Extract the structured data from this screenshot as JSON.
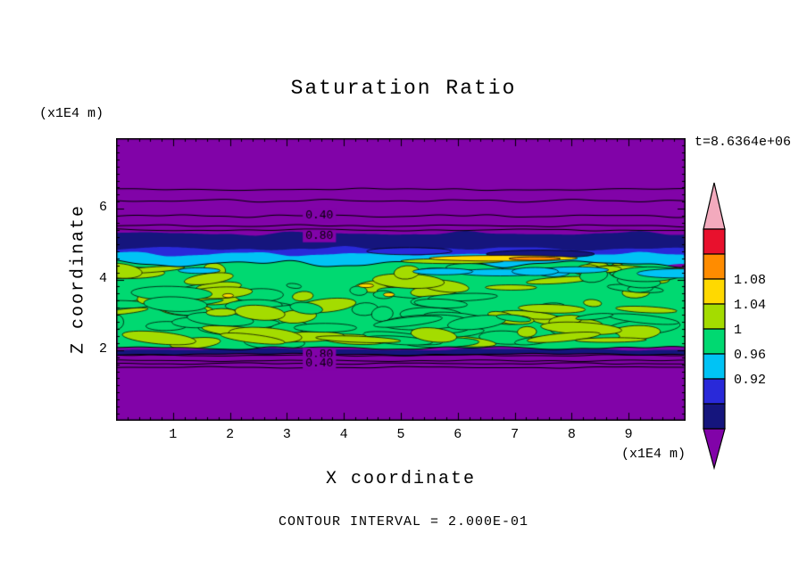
{
  "title": "Saturation Ratio",
  "annotations": {
    "time": "t=8.6364e+06",
    "contour_interval": "CONTOUR INTERVAL = 2.000E-01",
    "x_units": "(x1E4 m)",
    "z_units": "(x1E4 m)"
  },
  "axes": {
    "x": {
      "label": "X coordinate"
    },
    "z": {
      "label": "Z coordinate"
    }
  },
  "colorbar": {
    "labels": [
      "1.08",
      "1.04",
      "1",
      "0.96",
      "0.92"
    ],
    "labeled_boundary_indices": [
      2,
      3,
      4,
      5,
      6
    ],
    "colors_top_to_bottom": [
      "#f3aabd",
      "#e8112d",
      "#ff8c00",
      "#ffd900",
      "#a4dc00",
      "#00d971",
      "#00c3f5",
      "#2929d9",
      "#15157d",
      "#8103a8"
    ]
  },
  "contour_line_labels": {
    "upper": [
      "0.40",
      "0.80"
    ],
    "lower": [
      "0.80",
      "0.40"
    ]
  },
  "chart_data": {
    "type": "contour",
    "title": "Saturation Ratio",
    "xlabel": "X coordinate",
    "ylabel": "Z coordinate",
    "x_units": "(x1E4 m)",
    "z_units": "(x1E4 m)",
    "xlim": [
      0,
      10
    ],
    "ylim": [
      0,
      8
    ],
    "x_ticks": [
      1,
      2,
      3,
      4,
      5,
      6,
      7,
      8,
      9
    ],
    "y_ticks": [
      2,
      4,
      6
    ],
    "time": "t=8.6364e+06",
    "contour_interval": 0.2,
    "color_levels": [
      0.84,
      0.88,
      0.92,
      0.96,
      1.0,
      1.04,
      1.08,
      1.12,
      1.16
    ],
    "colorbar_tick_labels": [
      "1.08",
      "1.04",
      "1",
      "0.96",
      "0.92"
    ],
    "color_scale": [
      {
        "color": "pink",
        "range": "> 1.16"
      },
      {
        "color": "red",
        "range": "1.12 - 1.16"
      },
      {
        "color": "orange",
        "range": "1.08 - 1.12"
      },
      {
        "color": "yellow",
        "range": "1.04 - 1.08"
      },
      {
        "color": "chartreuse",
        "range": "1.00 - 1.04"
      },
      {
        "color": "green",
        "range": "0.96 - 1.00"
      },
      {
        "color": "cyan",
        "range": "0.92 - 0.96"
      },
      {
        "color": "blue",
        "range": "0.88 - 0.92"
      },
      {
        "color": "navy",
        "range": "0.84 - 0.88"
      },
      {
        "color": "purple",
        "range": "< 0.84"
      }
    ],
    "palette": {
      "pink": "#f3aabd",
      "red": "#e8112d",
      "orange": "#ff8c00",
      "yellow": "#ffd900",
      "chartreuse": "#a4dc00",
      "green": "#00d971",
      "cyan": "#00c3f5",
      "blue": "#2929d9",
      "navy": "#15157d",
      "purple": "#8103a8"
    },
    "field": {
      "description": "Horizontally stratified saturation-ratio field: strongly subsaturated purple zones (S<0.84) above z~5.3 and below z~1.9 with line contours 0.40/0.80 at interval 0.2; a dark blue band (S~0.84-0.92) near z~4.7-5.3; a turbulent near-saturated band (S~0.96-1.04, green with yellow-green eddies) between z~2.1 and z~4.5; thin supersaturated streak (S~1.04-1.12, yellow/orange) near z~4.6 around x~5.5-8.",
      "background_color": "purple",
      "upper_layers": [
        {
          "id": "navy1",
          "color": "navy",
          "z_top": 5.3,
          "z_bot": 4.64,
          "amp": 3,
          "seed": 11
        },
        {
          "id": "blue1",
          "color": "blue",
          "z_top": 4.87,
          "z_bot": 4.58,
          "amp": 3,
          "seed": 21
        },
        {
          "id": "cyan1",
          "color": "cyan",
          "z_top": 4.72,
          "z_bot": 4.34,
          "amp": 3.5,
          "seed": 31
        }
      ],
      "green_layer": {
        "id": "green",
        "color": "green",
        "z_top": 4.45,
        "z_bot": 2.06,
        "amp": 5,
        "amp_bottom": 2.5,
        "seed": 41,
        "blob_seed": 7,
        "blob_count": 120
      },
      "bottom_strip": {
        "id": "navy2",
        "color": "navy",
        "z_top": 2.02,
        "z_bot": 1.88,
        "amp": 1.5,
        "seed": 51
      },
      "streaks_under": [
        {
          "color": "blue",
          "x": 5.15,
          "z": 4.8,
          "rx": 0.75,
          "rz": 0.1
        },
        {
          "color": "navy",
          "x": 7.45,
          "z": 4.72,
          "rx": 0.95,
          "rz": 0.11
        }
      ],
      "streaks_over": [
        {
          "color": "chartreuse",
          "x": 5.9,
          "z": 4.52,
          "rx": 0.9,
          "rz": 0.07
        },
        {
          "color": "yellow",
          "x": 6.8,
          "z": 4.6,
          "rx": 1.3,
          "rz": 0.08
        },
        {
          "color": "orange",
          "x": 7.35,
          "z": 4.59,
          "rx": 0.45,
          "rz": 0.05
        }
      ],
      "line_contours_top": [
        {
          "z": 6.55,
          "amp": 1.5
        },
        {
          "z": 6.23,
          "amp": 2
        },
        {
          "z": 5.8,
          "amp": 2,
          "label": "0.40",
          "label_z": 5.81
        },
        {
          "z": 5.52,
          "amp": 1.5
        },
        {
          "z": 5.4,
          "amp": 1.5,
          "label": "0.80",
          "label_z": 5.23
        }
      ],
      "line_contours_bottom": [
        {
          "z": 1.85,
          "amp": 1.2,
          "label": "0.80",
          "label_z": 1.89
        },
        {
          "z": 1.7,
          "amp": 1.2
        },
        {
          "z": 1.62,
          "amp": 1.2,
          "label": "0.40",
          "label_z": 1.63
        },
        {
          "z": 1.51,
          "amp": 1.2
        }
      ],
      "label_x": 3.57
    }
  }
}
